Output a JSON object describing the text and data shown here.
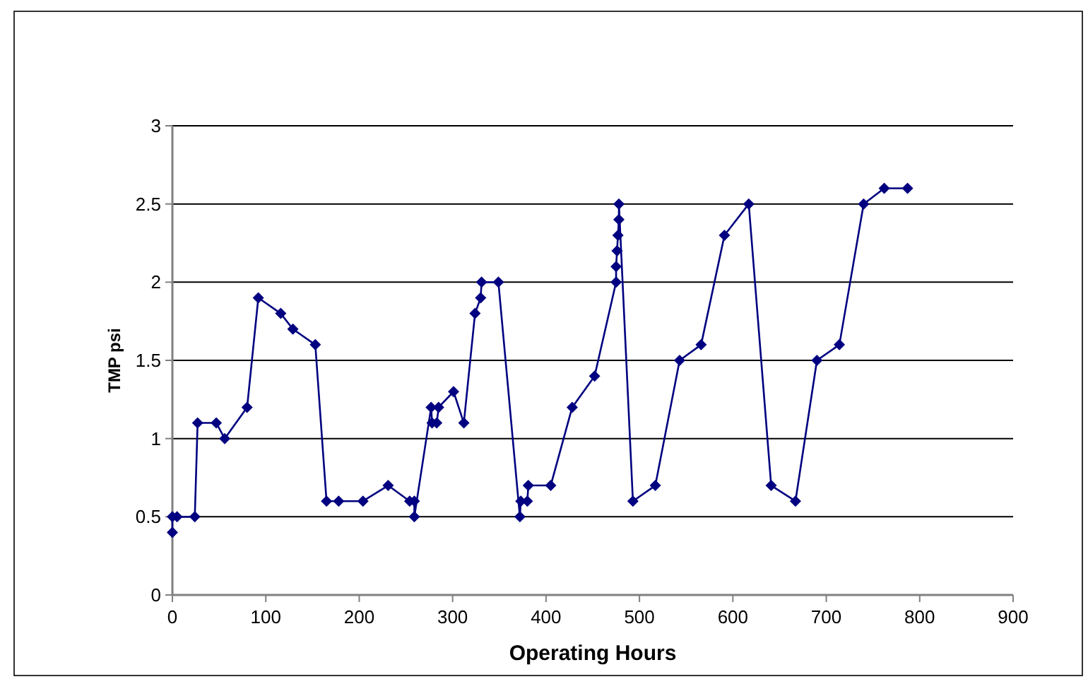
{
  "chart_data": {
    "type": "line",
    "xlabel": "Operating Hours",
    "ylabel": "TMP psi",
    "xlim": [
      0,
      900
    ],
    "xticks": [
      0,
      100,
      200,
      300,
      400,
      500,
      600,
      700,
      800,
      900
    ],
    "ylim": [
      0,
      3
    ],
    "yticks": [
      0,
      0.5,
      1,
      1.5,
      2,
      2.5,
      3
    ],
    "grid": "y",
    "marker": "diamond",
    "line_style": "solid",
    "series": [
      {
        "color": "#000080",
        "x": [
          0,
          0,
          5,
          24,
          27,
          47,
          56,
          80,
          92,
          116,
          129,
          153,
          165,
          178,
          204,
          231,
          254,
          259,
          259,
          277,
          278,
          283,
          285,
          301,
          312,
          324,
          330,
          331,
          349,
          372,
          373,
          380,
          381,
          405,
          428,
          452,
          475,
          475,
          476,
          477,
          478,
          478,
          493,
          517,
          543,
          566,
          591,
          617,
          641,
          667,
          690,
          714,
          740,
          762,
          787
        ],
        "values": [
          0.4,
          0.5,
          0.5,
          0.5,
          1.1,
          1.1,
          1.0,
          1.2,
          1.9,
          1.8,
          1.7,
          1.6,
          0.6,
          0.6,
          0.6,
          0.7,
          0.6,
          0.6,
          0.5,
          1.2,
          1.1,
          1.1,
          1.2,
          1.3,
          1.1,
          1.8,
          1.9,
          2.0,
          2.0,
          0.5,
          0.6,
          0.6,
          0.7,
          0.7,
          1.2,
          1.4,
          2.0,
          2.1,
          2.2,
          2.3,
          2.4,
          2.5,
          0.6,
          0.7,
          1.5,
          1.6,
          2.3,
          2.5,
          0.7,
          0.6,
          1.5,
          1.6,
          2.5,
          2.6,
          2.6
        ]
      }
    ]
  }
}
